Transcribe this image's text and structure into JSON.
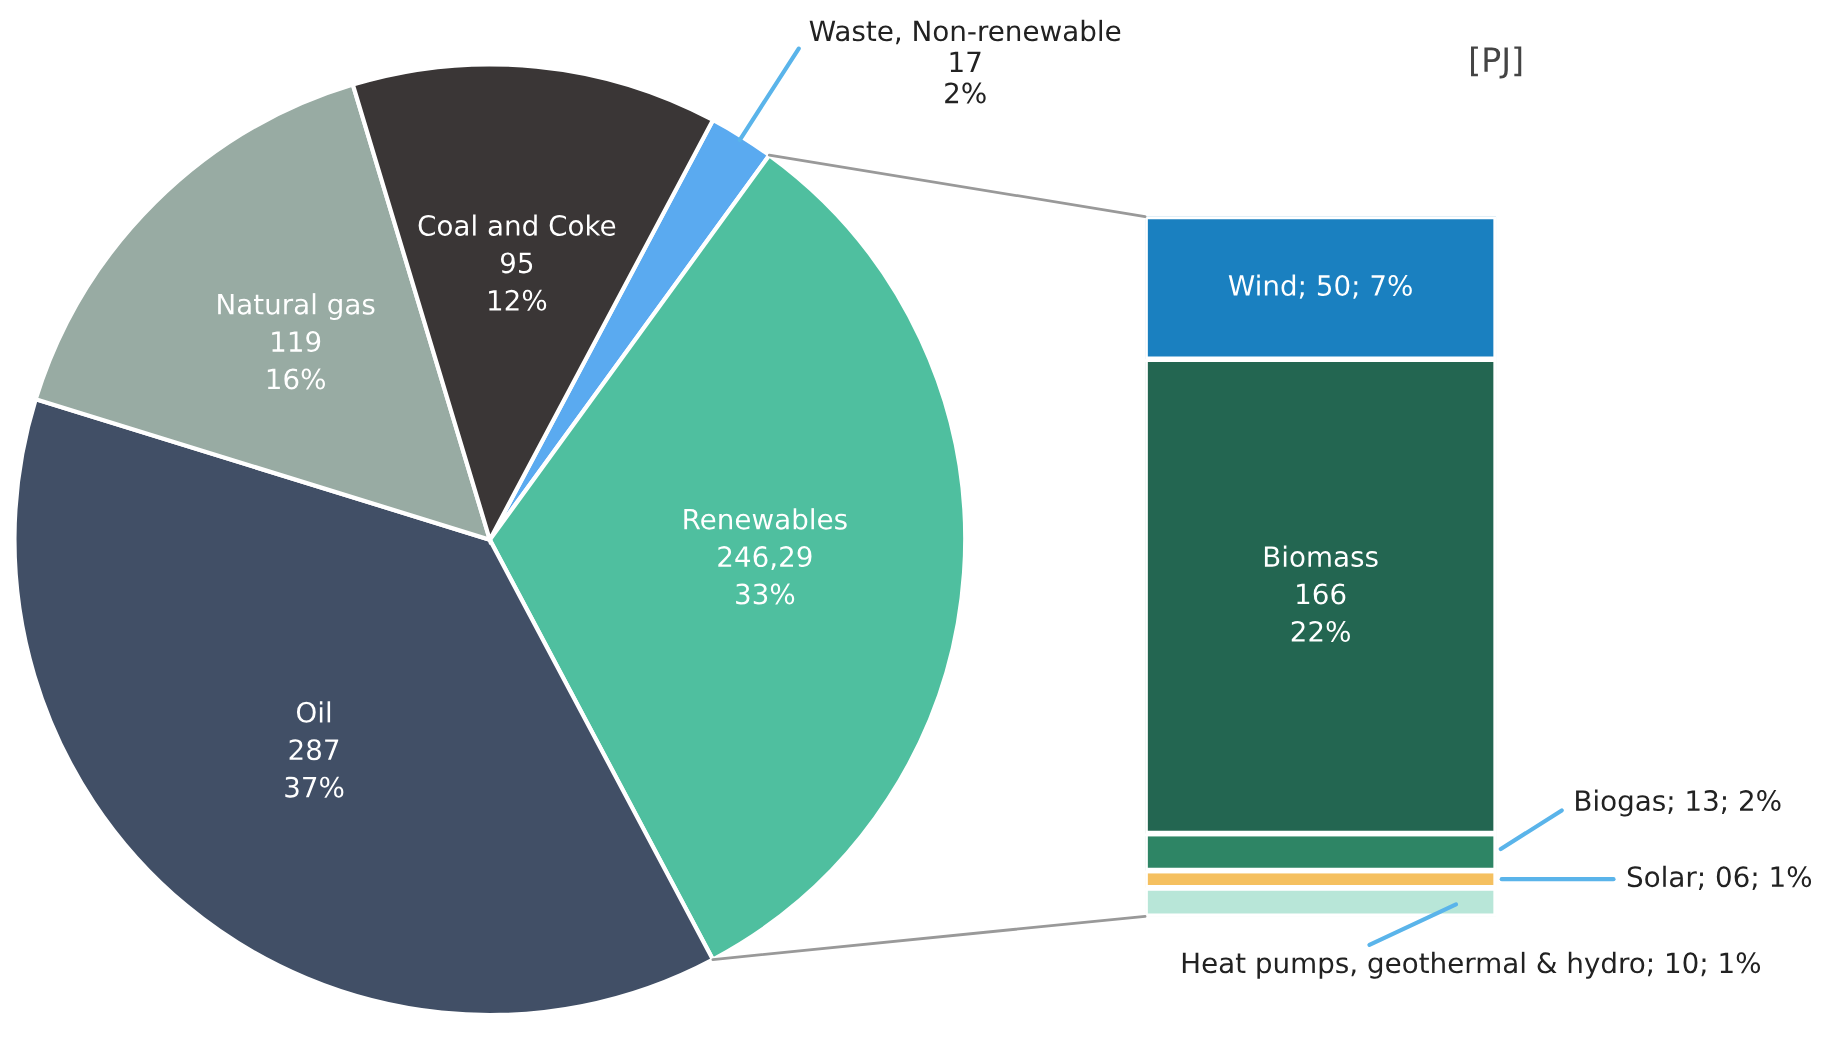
{
  "chart_data": [
    {
      "type": "pie",
      "categories": [
        "Waste, Non-renewable",
        "Renewables",
        "Oil",
        "Natural gas",
        "Coal and Coke"
      ],
      "values": [
        17,
        246.29,
        287,
        119,
        95
      ],
      "value_labels": [
        "17\n2%",
        "246,29\n33%",
        "287\n37%",
        "119\n16%",
        "95\n12%"
      ],
      "colors": [
        "#5aaaf0",
        "#4fbf9f",
        "#414f66",
        "#98aba3",
        "#3a3636"
      ]
    },
    {
      "type": "bar",
      "stacked": true,
      "categories": [
        null
      ],
      "annotations": [
        "[PJ]"
      ],
      "series": [
        {
          "color": "#b8e6d8",
          "values": [
            10
          ],
          "value_labels": [
            "Heat pumps, geothermal & hydro; 10; 1%"
          ]
        },
        {
          "color": "#f5c060",
          "values": [
            6
          ],
          "value_labels": [
            "Solar; 06; 1%"
          ]
        },
        {
          "color": "#2e8565",
          "values": [
            13
          ],
          "value_labels": [
            "Biogas; 13; 2%"
          ]
        },
        {
          "color": "#236651",
          "values": [
            166
          ],
          "value_labels": [
            "Biomass\n166\n22%"
          ]
        },
        {
          "color": "#1a80c0",
          "values": [
            50
          ],
          "value_labels": [
            "Wind; 50; 7%"
          ]
        }
      ]
    }
  ]
}
